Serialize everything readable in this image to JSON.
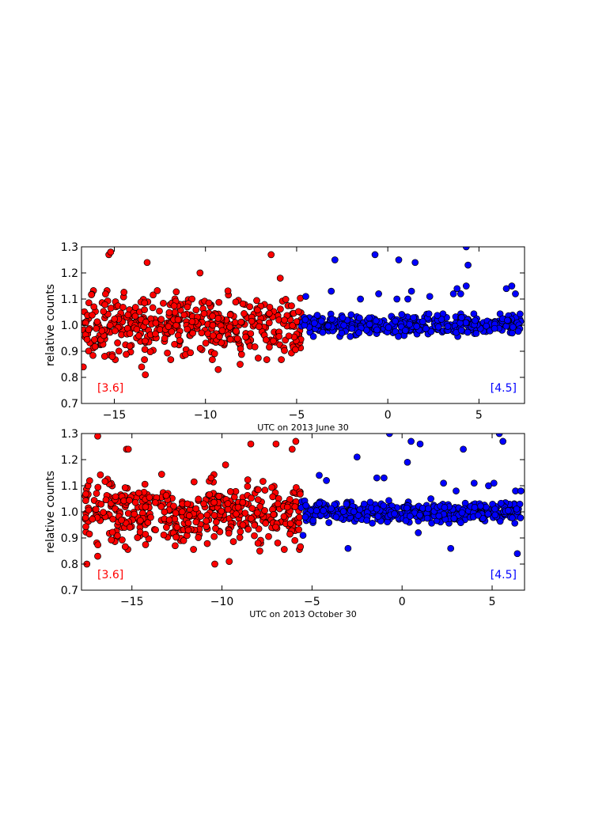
{
  "chart_data": [
    {
      "type": "scatter",
      "xlabel": "UTC on 2013 June 30",
      "ylabel": "relative counts",
      "xlim": [
        -16.8,
        7.5
      ],
      "ylim": [
        0.7,
        1.3
      ],
      "xticks": [
        -15,
        -10,
        -5,
        0,
        5
      ],
      "yticks": [
        0.7,
        0.8,
        0.9,
        1.0,
        1.1,
        1.2,
        1.3
      ],
      "grid": false,
      "annotations": [
        {
          "text": "[3.6]",
          "color": "#ff0000",
          "position": "bottom-left"
        },
        {
          "text": "[4.5]",
          "color": "#0000ff",
          "position": "bottom-right"
        }
      ],
      "series": [
        {
          "color": "#ff0000",
          "x_range": [
            -16.7,
            -4.75
          ],
          "baseline": 1.0,
          "scatter": 0.055,
          "outliers": [
            [
              -15.3,
              1.27
            ],
            [
              -15.2,
              1.28
            ],
            [
              -13.2,
              1.24
            ],
            [
              -10.3,
              1.2
            ],
            [
              -6.4,
              1.27
            ],
            [
              -5.9,
              1.18
            ],
            [
              -16.7,
              0.84
            ],
            [
              -13.5,
              0.84
            ],
            [
              -13.3,
              0.81
            ],
            [
              -9.3,
              0.83
            ],
            [
              -8.1,
              0.85
            ]
          ]
        },
        {
          "color": "#0000ff",
          "x_range": [
            -4.75,
            7.3
          ],
          "baseline": 1.0,
          "scatter": 0.018,
          "outliers": [
            [
              -2.9,
              1.25
            ],
            [
              -0.7,
              1.27
            ],
            [
              0.6,
              1.25
            ],
            [
              1.5,
              1.24
            ],
            [
              4.3,
              1.3
            ],
            [
              4.4,
              1.23
            ],
            [
              3.8,
              1.14
            ],
            [
              4.3,
              1.15
            ],
            [
              4.0,
              1.12
            ],
            [
              3.6,
              1.12
            ],
            [
              1.3,
              1.13
            ],
            [
              1.1,
              1.1
            ],
            [
              0.5,
              1.1
            ],
            [
              -0.5,
              1.12
            ],
            [
              -1.5,
              1.1
            ],
            [
              2.3,
              1.11
            ],
            [
              6.8,
              1.15
            ],
            [
              6.5,
              1.14
            ],
            [
              7.0,
              1.12
            ],
            [
              -3.1,
              1.13
            ],
            [
              -4.5,
              1.11
            ]
          ]
        }
      ]
    },
    {
      "type": "scatter",
      "xlabel": "UTC on 2013 October 30",
      "ylabel": "relative counts",
      "xlim": [
        -17.8,
        6.8
      ],
      "ylim": [
        0.7,
        1.3
      ],
      "xticks": [
        -15,
        -10,
        -5,
        0,
        5
      ],
      "yticks": [
        0.7,
        0.8,
        0.9,
        1.0,
        1.1,
        1.2,
        1.3
      ],
      "grid": false,
      "annotations": [
        {
          "text": "[3.6]",
          "color": "#ff0000",
          "position": "bottom-left"
        },
        {
          "text": "[4.5]",
          "color": "#0000ff",
          "position": "bottom-right"
        }
      ],
      "series": [
        {
          "color": "#ff0000",
          "x_range": [
            -17.6,
            -5.6
          ],
          "baseline": 1.0,
          "scatter": 0.06,
          "outliers": [
            [
              -16.9,
              1.29
            ],
            [
              -15.3,
              1.24
            ],
            [
              -15.2,
              1.24
            ],
            [
              -10.6,
              1.13
            ],
            [
              -9.8,
              1.18
            ],
            [
              -8.4,
              1.26
            ],
            [
              -7.0,
              1.26
            ],
            [
              -5.9,
              1.27
            ],
            [
              -6.1,
              1.24
            ],
            [
              -17.5,
              0.8
            ],
            [
              -10.4,
              0.8
            ],
            [
              -9.6,
              0.81
            ],
            [
              -7.9,
              0.85
            ],
            [
              -16.9,
              0.83
            ]
          ]
        },
        {
          "color": "#0000ff",
          "x_range": [
            -5.6,
            6.6
          ],
          "baseline": 1.0,
          "scatter": 0.018,
          "outliers": [
            [
              -0.7,
              1.3
            ],
            [
              0.5,
              1.27
            ],
            [
              1.0,
              1.26
            ],
            [
              5.4,
              1.3
            ],
            [
              5.6,
              1.27
            ],
            [
              3.4,
              1.24
            ],
            [
              -2.5,
              1.21
            ],
            [
              0.3,
              1.19
            ],
            [
              -4.6,
              1.14
            ],
            [
              -4.2,
              1.12
            ],
            [
              -1.4,
              1.13
            ],
            [
              -1.0,
              1.13
            ],
            [
              -3.0,
              0.86
            ],
            [
              2.7,
              0.86
            ],
            [
              6.4,
              0.84
            ],
            [
              0.9,
              0.92
            ],
            [
              -5.5,
              0.91
            ],
            [
              6.3,
              1.08
            ],
            [
              6.6,
              1.08
            ],
            [
              2.3,
              1.11
            ],
            [
              4.0,
              1.11
            ],
            [
              4.8,
              1.1
            ],
            [
              5.1,
              1.11
            ],
            [
              1.6,
              1.05
            ],
            [
              3.0,
              1.08
            ]
          ]
        }
      ]
    }
  ]
}
